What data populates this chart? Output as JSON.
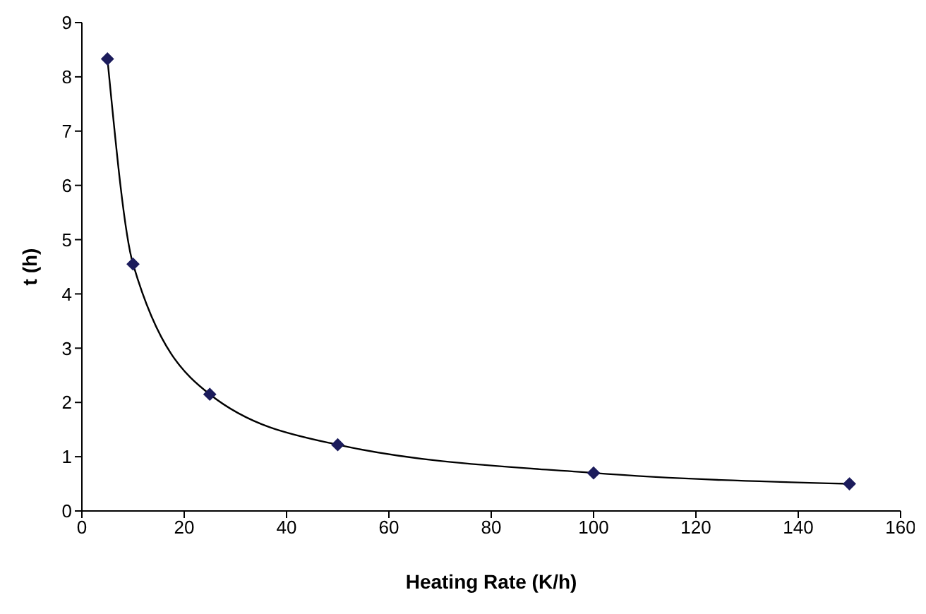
{
  "chart_data": {
    "type": "line",
    "xlabel": "Heating Rate (K/h)",
    "ylabel": "t (h)",
    "x": [
      5,
      10,
      25,
      50,
      100,
      150
    ],
    "series": [
      {
        "color": "#1c1c5c",
        "values": [
          8.33,
          4.55,
          2.15,
          1.22,
          0.7,
          0.5
        ]
      }
    ],
    "xlim": [
      0,
      160
    ],
    "xticks": [
      0,
      20,
      40,
      60,
      80,
      100,
      120,
      140,
      160
    ],
    "ylim": [
      0,
      9
    ],
    "yticks": [
      0,
      1,
      2,
      3,
      4,
      5,
      6,
      7,
      8,
      9
    ],
    "grid": false,
    "legend": false,
    "marker": "diamond",
    "line_style": "solid"
  }
}
